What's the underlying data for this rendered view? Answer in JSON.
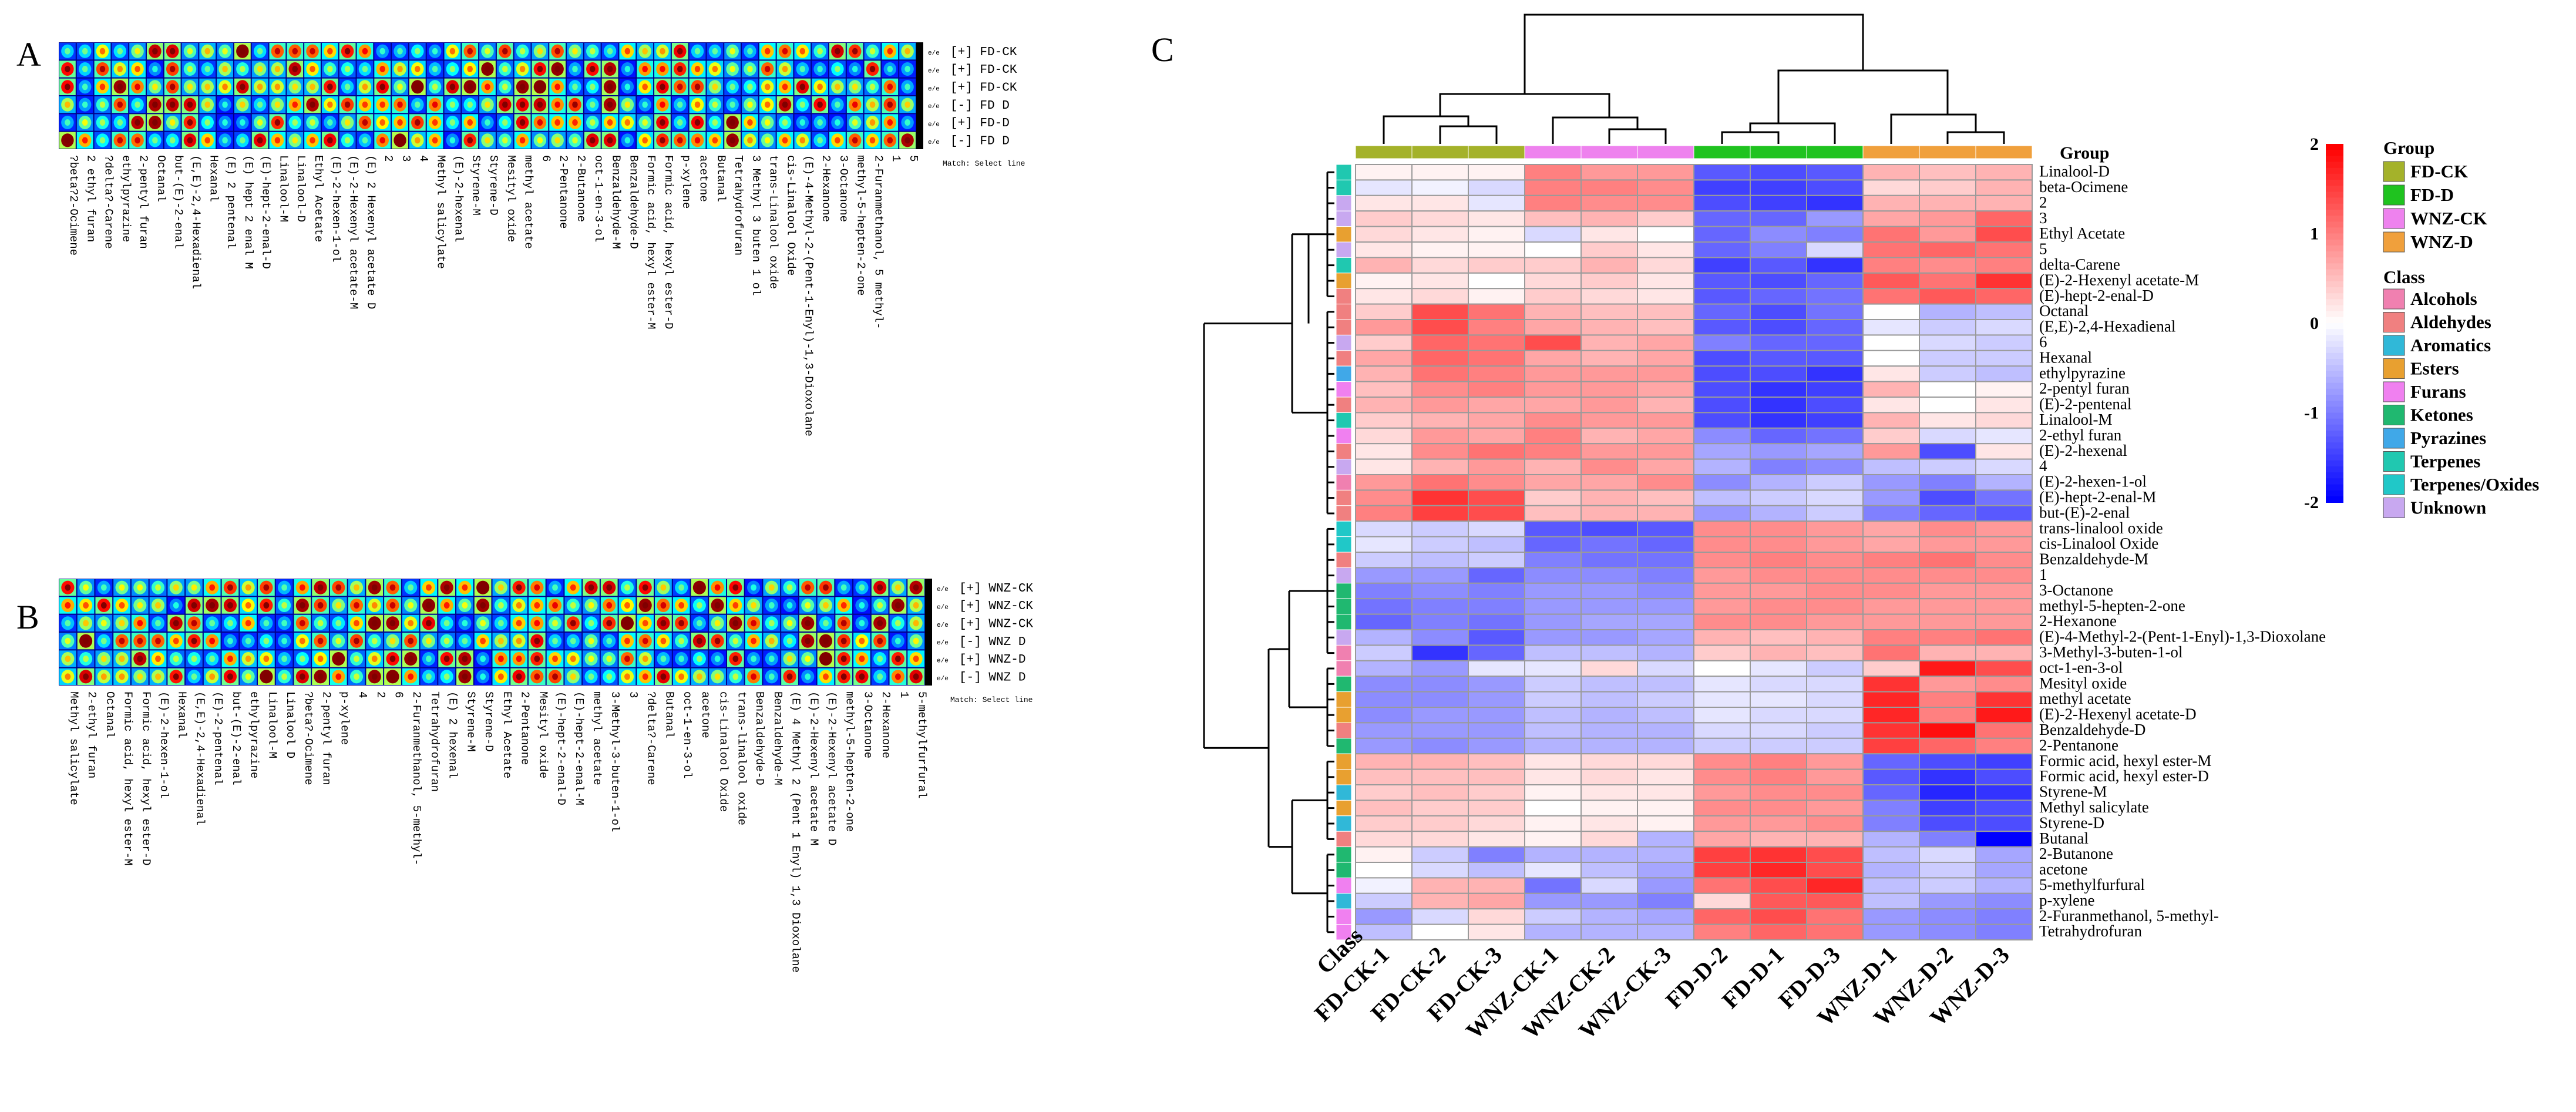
{
  "panel_a": {
    "letter": "A",
    "row_labels": [
      "[+] FD-CK",
      "[+] FD-CK",
      "[+] FD-CK",
      "[-] FD D",
      "[+] FD-D",
      "[-] FD D"
    ],
    "match_text": "Match: Select line",
    "columns": [
      "?beta?2-Ocimene",
      "2 ethyl furan",
      "?delta?-Carene",
      "ethylpyrazine",
      "2-pentyl furan",
      "Octanal",
      "but-(E)-2-enal",
      "(E,E)-2,4-Hexadienal",
      "Hexanal",
      "(E) 2 pentenal",
      "(E) hept 2 enal M",
      "(E)-hept-2-enal-D",
      "Linalool-M",
      "Linalool-D",
      "Ethyl Acetate",
      "(E)-2-hexen-1-ol",
      "(E)-2-Hexenyl acetate-M",
      "(E) 2 Hexenyl acetate D",
      "2",
      "3",
      "4",
      "Methyl salicylate",
      "(E)-2-hexenal",
      "Styrene-M",
      "Styrene-D",
      "Mesityl oxide",
      "methyl acetate",
      "6",
      "2-Pentanone",
      "2-Butanone",
      "oct-1-en-3-ol",
      "Benzaldehyde-M",
      "Benzaldehyde-D",
      "Formic acid, hexyl ester-M",
      "Formic acid, hexyl ester-D",
      "p-xylene",
      "acetone",
      "Butanal",
      "Tetrahydrofuran",
      "3 Methyl 3 buten 1 ol",
      "trans-Linalool oxide",
      "cis-Linalool Oxide",
      "(E)-4-Methyl-2-(Pent-1-Enyl)-1,3-Dioxolane",
      "2-Hexanone",
      "3-Octanone",
      "methyl-5-hepten-2-one",
      "2-Furanmethanol, 5 methyl-",
      "1",
      "5"
    ]
  },
  "panel_b": {
    "letter": "B",
    "row_labels": [
      "[+] WNZ-CK",
      "[+] WNZ-CK",
      "[+] WNZ-CK",
      "[-] WNZ D",
      "[+] WNZ-D",
      "[-] WNZ D"
    ],
    "match_text": "Match: Select line",
    "columns": [
      "Methyl salicylate",
      "2-ethyl furan",
      "Octanal",
      "Formic acid, hexyl ester-M",
      "Formic acid, hexyl ester-D",
      "(E)-2-hexen-1-ol",
      "Hexanal",
      "(E,E)-2,4-Hexadienal",
      "(E)-2-pentenal",
      "but-(E)-2-enal",
      "ethylpyrazine",
      "Linalool-M",
      "Linalool D",
      "?beta?-Ocimene",
      "2-pentyl furan",
      "p-xylene",
      "4",
      "2",
      "6",
      "2-Furanmethanol, 5-methyl-",
      "Tetrahydrofuran",
      "(E) 2 hexenal",
      "Styrene-M",
      "Styrene-D",
      "Ethyl Acetate",
      "2-Pentanone",
      "Mesityl oxide",
      "(E)-hept-2-enal-D",
      "(E)-hept-2-enal-M",
      "methyl acetate",
      "3-Methyl-3-buten-1-ol",
      "3",
      "?delta?-Carene",
      "Butanal",
      "oct-1-en-3-ol",
      "acetone",
      "cis-Linalool Oxide",
      "trans-linalool oxide",
      "Benzaldehyde-D",
      "Benzaldehyde-M",
      "(E) 4 Methyl 2 (Pent 1 Enyl) 1,3 Dioxolane",
      "(E)-2-Hexenyl acetate M",
      "(E)-2-Hexenyl acetate D",
      "methyl-5-hepten-2-one",
      "3-Octanone",
      "2-Hexanone",
      "1",
      "5-methylfurfural"
    ]
  },
  "panel_c": {
    "letter": "C",
    "group_label": "Group",
    "class_label": "Class",
    "legend": {
      "group_title": "Group",
      "groups": [
        {
          "name": "FD-CK",
          "color": "#a4b22a"
        },
        {
          "name": "FD-D",
          "color": "#1fc31f"
        },
        {
          "name": "WNZ-CK",
          "color": "#ee82ee"
        },
        {
          "name": "WNZ-D",
          "color": "#f0a03c"
        }
      ],
      "class_title": "Class",
      "classes": [
        {
          "name": "Alcohols",
          "color": "#f080b0"
        },
        {
          "name": "Aldehydes",
          "color": "#f08080"
        },
        {
          "name": "Aromatics",
          "color": "#30b8d8"
        },
        {
          "name": "Esters",
          "color": "#e8a030"
        },
        {
          "name": "Furans",
          "color": "#f080f0"
        },
        {
          "name": "Ketones",
          "color": "#20b870"
        },
        {
          "name": "Pyrazines",
          "color": "#40a8e8"
        },
        {
          "name": "Terpenes",
          "color": "#20c8b0"
        },
        {
          "name": "Terpenes/Oxides",
          "color": "#20c8c8"
        },
        {
          "name": "Unknown",
          "color": "#c8a8f0"
        }
      ],
      "scale_ticks": [
        "2",
        "1",
        "0",
        "-1",
        "-2"
      ]
    }
  },
  "chart_data": {
    "type": "heatmap",
    "title": "",
    "color_scale": {
      "min": -2,
      "max": 2,
      "colors": [
        "#0000ff",
        "#ffffff",
        "#ff0000"
      ]
    },
    "columns": [
      "FD-CK-1",
      "FD-CK-2",
      "FD-CK-3",
      "WNZ-CK-1",
      "WNZ-CK-2",
      "WNZ-CK-3",
      "FD-D-2",
      "FD-D-1",
      "FD-D-3",
      "WNZ-D-1",
      "WNZ-D-2",
      "WNZ-D-3"
    ],
    "column_groups": [
      "FD-CK",
      "FD-CK",
      "FD-CK",
      "WNZ-CK",
      "WNZ-CK",
      "WNZ-CK",
      "FD-D",
      "FD-D",
      "FD-D",
      "WNZ-D",
      "WNZ-D",
      "WNZ-D"
    ],
    "rows": [
      {
        "name": "Linalool-D",
        "class": "Terpenes",
        "values": [
          0.1,
          0.1,
          0.1,
          1.0,
          0.8,
          0.8,
          -1.3,
          -1.4,
          -1.3,
          0.6,
          0.5,
          0.6
        ]
      },
      {
        "name": "beta-Ocimene",
        "class": "Terpenes",
        "values": [
          -0.2,
          -0.1,
          -0.3,
          1.0,
          1.0,
          0.9,
          -1.5,
          -1.5,
          -1.4,
          0.3,
          0.4,
          0.6
        ]
      },
      {
        "name": "2",
        "class": "Unknown",
        "values": [
          0.2,
          0.2,
          -0.2,
          1.0,
          0.9,
          0.9,
          -1.4,
          -1.5,
          -1.6,
          0.6,
          0.6,
          0.6
        ]
      },
      {
        "name": "3",
        "class": "Unknown",
        "values": [
          0.4,
          0.3,
          0.2,
          0.5,
          0.6,
          0.4,
          -1.2,
          -1.2,
          -0.8,
          0.7,
          0.8,
          1.2
        ]
      },
      {
        "name": "Ethyl Acetate",
        "class": "Esters",
        "values": [
          0.3,
          0.2,
          0.1,
          -0.3,
          0.2,
          0.0,
          -1.2,
          -0.9,
          -1.0,
          1.1,
          0.8,
          1.4
        ]
      },
      {
        "name": "5",
        "class": "Unknown",
        "values": [
          0.2,
          0.1,
          0.1,
          0.0,
          0.4,
          0.2,
          -1.2,
          -1.0,
          -0.3,
          1.1,
          1.2,
          1.1
        ]
      },
      {
        "name": "delta-Carene",
        "class": "Terpenes",
        "values": [
          0.6,
          0.3,
          0.4,
          0.4,
          0.6,
          0.3,
          -1.5,
          -1.3,
          -1.6,
          1.0,
          0.9,
          1.0
        ]
      },
      {
        "name": "(E)-2-Hexenyl acetate-M",
        "class": "Esters",
        "values": [
          0.1,
          0.2,
          0.0,
          0.3,
          0.4,
          0.2,
          -1.3,
          -1.4,
          -1.2,
          1.3,
          1.1,
          1.6
        ]
      },
      {
        "name": "(E)-hept-2-enal-D",
        "class": "Aldehydes",
        "values": [
          0.2,
          0.3,
          0.1,
          0.4,
          0.3,
          0.2,
          -1.3,
          -1.2,
          -1.1,
          1.1,
          1.3,
          1.2
        ]
      },
      {
        "name": "Octanal",
        "class": "Aldehydes",
        "values": [
          0.4,
          1.4,
          1.1,
          0.6,
          0.5,
          0.5,
          -1.2,
          -1.4,
          -1.1,
          0.0,
          -0.6,
          -0.5
        ]
      },
      {
        "name": "(E,E)-2,4-Hexadienal",
        "class": "Aldehydes",
        "values": [
          0.8,
          1.4,
          1.0,
          0.7,
          0.6,
          0.5,
          -1.3,
          -1.4,
          -1.2,
          -0.2,
          -0.4,
          -0.3
        ]
      },
      {
        "name": "6",
        "class": "Unknown",
        "values": [
          0.4,
          1.2,
          1.1,
          1.4,
          0.6,
          0.7,
          -1.0,
          -1.2,
          -1.2,
          0.0,
          -0.3,
          -0.4
        ]
      },
      {
        "name": "Hexanal",
        "class": "Aldehydes",
        "values": [
          0.7,
          1.2,
          1.1,
          0.7,
          0.6,
          0.7,
          -1.4,
          -1.3,
          -1.3,
          0.0,
          -0.4,
          -0.4
        ]
      },
      {
        "name": "ethylpyrazine",
        "class": "Pyrazines",
        "values": [
          0.6,
          1.1,
          1.0,
          0.8,
          0.8,
          0.8,
          -1.4,
          -1.4,
          -1.6,
          0.2,
          -0.4,
          -0.5
        ]
      },
      {
        "name": "2-pentyl furan",
        "class": "Furans",
        "values": [
          0.5,
          0.9,
          1.0,
          0.8,
          0.8,
          0.7,
          -1.4,
          -1.6,
          -1.5,
          0.6,
          0.0,
          0.1
        ]
      },
      {
        "name": "(E)-2-pentenal",
        "class": "Aldehydes",
        "values": [
          0.6,
          0.8,
          0.7,
          0.7,
          0.8,
          0.6,
          -1.4,
          -1.6,
          -1.4,
          0.2,
          0.0,
          0.2
        ]
      },
      {
        "name": "Linalool-M",
        "class": "Terpenes",
        "values": [
          0.4,
          0.6,
          0.7,
          0.9,
          0.8,
          0.8,
          -1.4,
          -1.6,
          -1.5,
          0.6,
          0.2,
          0.3
        ]
      },
      {
        "name": "2-ethyl furan",
        "class": "Furans",
        "values": [
          0.3,
          0.8,
          0.7,
          1.0,
          0.6,
          0.7,
          -0.9,
          -1.2,
          -1.1,
          0.4,
          -0.3,
          -0.2
        ]
      },
      {
        "name": "(E)-2-hexenal",
        "class": "Aldehydes",
        "values": [
          0.2,
          0.9,
          1.1,
          1.0,
          0.8,
          0.8,
          -0.7,
          -0.8,
          -0.7,
          0.8,
          -1.4,
          0.2
        ]
      },
      {
        "name": "4",
        "class": "Unknown",
        "values": [
          0.2,
          0.6,
          0.8,
          0.6,
          0.9,
          0.7,
          -0.6,
          -1.0,
          -0.9,
          -0.5,
          -0.4,
          -0.3
        ]
      },
      {
        "name": "(E)-2-hexen-1-ol",
        "class": "Alcohols",
        "values": [
          0.8,
          1.1,
          0.9,
          0.7,
          0.7,
          0.9,
          -0.9,
          -0.6,
          -0.4,
          -0.8,
          -1.0,
          -0.6
        ]
      },
      {
        "name": "(E)-hept-2-enal-M",
        "class": "Aldehydes",
        "values": [
          0.9,
          1.6,
          1.4,
          0.4,
          0.6,
          0.5,
          -0.5,
          -0.4,
          -0.3,
          -0.8,
          -1.4,
          -1.1
        ]
      },
      {
        "name": "but-(E)-2-enal",
        "class": "Aldehydes",
        "values": [
          1.0,
          1.5,
          1.4,
          0.5,
          0.6,
          0.6,
          -0.8,
          -0.6,
          -0.4,
          -1.0,
          -1.2,
          -1.3
        ]
      },
      {
        "name": "trans-linalool oxide",
        "class": "Terpenes/Oxides",
        "values": [
          -0.3,
          -0.4,
          -0.3,
          -1.3,
          -1.4,
          -1.3,
          0.9,
          0.9,
          0.8,
          0.7,
          0.9,
          0.8
        ]
      },
      {
        "name": "cis-Linalool Oxide",
        "class": "Terpenes/Oxides",
        "values": [
          -0.2,
          -0.4,
          -0.5,
          -1.2,
          -1.1,
          -1.2,
          0.9,
          0.9,
          0.8,
          0.7,
          0.8,
          0.8
        ]
      },
      {
        "name": "Benzaldehyde-M",
        "class": "Aldehydes",
        "values": [
          -0.4,
          -0.5,
          -0.4,
          -1.0,
          -1.1,
          -1.1,
          0.9,
          1.0,
          0.9,
          1.0,
          1.1,
          0.9
        ]
      },
      {
        "name": "1",
        "class": "Unknown",
        "values": [
          -0.8,
          -0.8,
          -1.2,
          -0.9,
          -0.9,
          -1.0,
          0.8,
          0.9,
          0.9,
          0.9,
          0.9,
          0.9
        ]
      },
      {
        "name": "3-Octanone",
        "class": "Ketones",
        "values": [
          -1.0,
          -0.9,
          -1.0,
          -0.8,
          -0.8,
          -0.9,
          0.8,
          0.8,
          0.9,
          0.9,
          0.8,
          0.8
        ]
      },
      {
        "name": "methyl-5-hepten-2-one",
        "class": "Ketones",
        "values": [
          -1.1,
          -1.0,
          -1.0,
          -0.8,
          -0.8,
          -0.8,
          0.8,
          0.9,
          0.9,
          0.8,
          0.8,
          0.8
        ]
      },
      {
        "name": "2-Hexanone",
        "class": "Ketones",
        "values": [
          -1.2,
          -1.0,
          -1.1,
          -0.8,
          -0.7,
          -0.7,
          0.9,
          0.9,
          0.8,
          0.8,
          0.8,
          0.8
        ]
      },
      {
        "name": "(E)-4-Methyl-2-(Pent-1-Enyl)-1,3-Dioxolane",
        "class": "Unknown",
        "values": [
          -0.6,
          -0.9,
          -1.3,
          -0.8,
          -0.8,
          -0.7,
          0.6,
          0.5,
          0.6,
          1.0,
          1.0,
          1.1
        ]
      },
      {
        "name": "3-Methyl-3-buten-1-ol",
        "class": "Alcohols",
        "values": [
          -0.4,
          -1.6,
          -1.2,
          -0.5,
          -0.5,
          -0.6,
          0.4,
          0.6,
          0.5,
          1.1,
          0.6,
          0.6
        ]
      },
      {
        "name": "oct-1-en-3-ol",
        "class": "Alcohols",
        "values": [
          -0.6,
          -0.8,
          -0.2,
          -0.2,
          0.3,
          -0.3,
          0.0,
          -0.2,
          -0.4,
          0.4,
          1.8,
          1.4
        ]
      },
      {
        "name": "Mesityl oxide",
        "class": "Ketones",
        "values": [
          -0.9,
          -0.9,
          -0.8,
          -0.4,
          -0.5,
          -0.5,
          -0.2,
          -0.3,
          -0.3,
          1.6,
          0.8,
          0.9
        ]
      },
      {
        "name": "methyl acetate",
        "class": "Esters",
        "values": [
          -0.9,
          -0.9,
          -0.8,
          -0.4,
          -0.5,
          -0.4,
          -0.2,
          -0.2,
          -0.3,
          1.7,
          1.0,
          1.6
        ]
      },
      {
        "name": "(E)-2-Hexenyl acetate-D",
        "class": "Esters",
        "values": [
          -0.9,
          -0.8,
          -0.8,
          -0.5,
          -0.6,
          -0.5,
          -0.2,
          -0.3,
          -0.3,
          1.7,
          1.0,
          1.8
        ]
      },
      {
        "name": "Benzaldehyde-D",
        "class": "Aldehydes",
        "values": [
          -0.8,
          -0.8,
          -0.8,
          -0.5,
          -0.6,
          -0.6,
          -0.3,
          -0.3,
          -0.4,
          1.6,
          1.9,
          1.1
        ]
      },
      {
        "name": "2-Pentanone",
        "class": "Ketones",
        "values": [
          -0.8,
          -0.9,
          -0.8,
          -0.6,
          -0.6,
          -0.6,
          -0.4,
          -0.4,
          -0.4,
          1.5,
          1.2,
          1.0
        ]
      },
      {
        "name": "Formic acid, hexyl ester-M",
        "class": "Esters",
        "values": [
          0.6,
          0.6,
          0.5,
          0.2,
          0.3,
          0.3,
          0.9,
          1.0,
          0.8,
          -1.2,
          -1.4,
          -1.5
        ]
      },
      {
        "name": "Formic acid, hexyl ester-D",
        "class": "Esters",
        "values": [
          0.5,
          0.5,
          0.5,
          0.2,
          0.3,
          0.2,
          0.9,
          1.0,
          0.8,
          -1.3,
          -1.6,
          -1.4
        ]
      },
      {
        "name": "Styrene-M",
        "class": "Aromatics",
        "values": [
          0.4,
          0.5,
          0.4,
          0.1,
          0.2,
          0.2,
          0.8,
          0.9,
          0.9,
          -1.2,
          -1.7,
          -1.6
        ]
      },
      {
        "name": "Methyl salicylate",
        "class": "Esters",
        "values": [
          0.5,
          0.4,
          0.4,
          0.0,
          0.1,
          0.1,
          0.9,
          0.9,
          0.8,
          -1.0,
          -1.5,
          -1.4
        ]
      },
      {
        "name": "Styrene-D",
        "class": "Aromatics",
        "values": [
          0.4,
          0.4,
          0.3,
          0.1,
          0.2,
          0.1,
          0.8,
          0.8,
          0.9,
          -1.0,
          -1.4,
          -1.4
        ]
      },
      {
        "name": "Butanal",
        "class": "Aldehydes",
        "values": [
          0.3,
          0.3,
          0.2,
          0.1,
          0.3,
          -0.6,
          0.7,
          0.6,
          0.6,
          -0.6,
          -1.0,
          -2.0
        ]
      },
      {
        "name": "2-Butanone",
        "class": "Ketones",
        "values": [
          0.1,
          -0.4,
          -1.0,
          -0.6,
          -0.6,
          -0.6,
          1.5,
          1.6,
          1.4,
          -0.5,
          -0.3,
          -0.7
        ]
      },
      {
        "name": "acetone",
        "class": "Ketones",
        "values": [
          0.0,
          -0.3,
          -0.5,
          -0.2,
          -0.5,
          -0.7,
          1.5,
          1.7,
          1.4,
          -0.6,
          -0.4,
          -0.7
        ]
      },
      {
        "name": "5-methylfurfural",
        "class": "Furans",
        "values": [
          -0.1,
          0.6,
          0.6,
          -1.1,
          -0.3,
          -0.8,
          1.1,
          1.4,
          1.7,
          -0.5,
          -0.4,
          -0.6
        ]
      },
      {
        "name": "p-xylene",
        "class": "Aromatics",
        "values": [
          -0.4,
          0.6,
          0.7,
          -0.8,
          -0.8,
          -1.0,
          0.3,
          1.3,
          1.3,
          -0.5,
          -0.8,
          -0.9
        ]
      },
      {
        "name": "2-Furanmethanol, 5-methyl-",
        "class": "Furans",
        "values": [
          -0.8,
          -0.3,
          0.3,
          -0.4,
          -0.6,
          -0.7,
          1.2,
          1.4,
          1.1,
          -0.8,
          -0.9,
          -1.0
        ]
      },
      {
        "name": "Tetrahydrofuran",
        "class": "Furans",
        "values": [
          -0.5,
          0.0,
          0.2,
          -0.6,
          -0.6,
          -0.6,
          1.0,
          1.2,
          1.1,
          -0.8,
          -0.9,
          -1.0
        ]
      }
    ]
  }
}
